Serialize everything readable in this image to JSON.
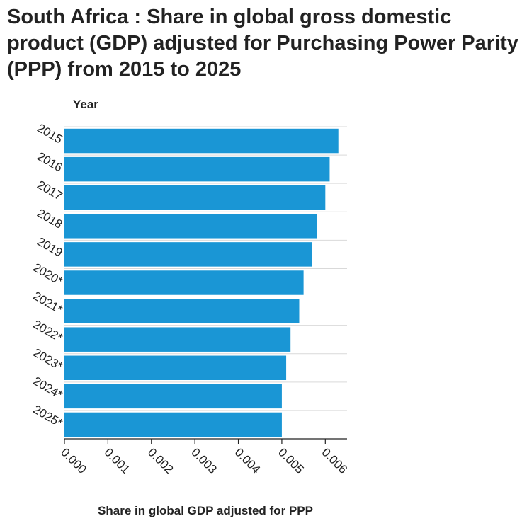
{
  "chart_data": {
    "type": "bar",
    "orientation": "horizontal",
    "title": "South Africa : Share in global gross domestic product (GDP) adjusted for Purchasing Power Parity (PPP) from 2015 to 2025",
    "xlabel": "Share in global GDP adjusted for PPP",
    "ylabel": "Year",
    "categories": [
      "2015",
      "2016",
      "2017",
      "2018",
      "2019",
      "2020*",
      "2021*",
      "2022*",
      "2023*",
      "2024*",
      "2025*"
    ],
    "values": [
      0.0063,
      0.0061,
      0.006,
      0.0058,
      0.0057,
      0.0055,
      0.0054,
      0.0052,
      0.0051,
      0.005,
      0.005
    ],
    "xlim": [
      0,
      0.0065
    ],
    "xticks": [
      "0.000",
      "0.001",
      "0.002",
      "0.003",
      "0.004",
      "0.005",
      "0.006"
    ],
    "grid": true,
    "bar_color": "#1a96d5"
  }
}
